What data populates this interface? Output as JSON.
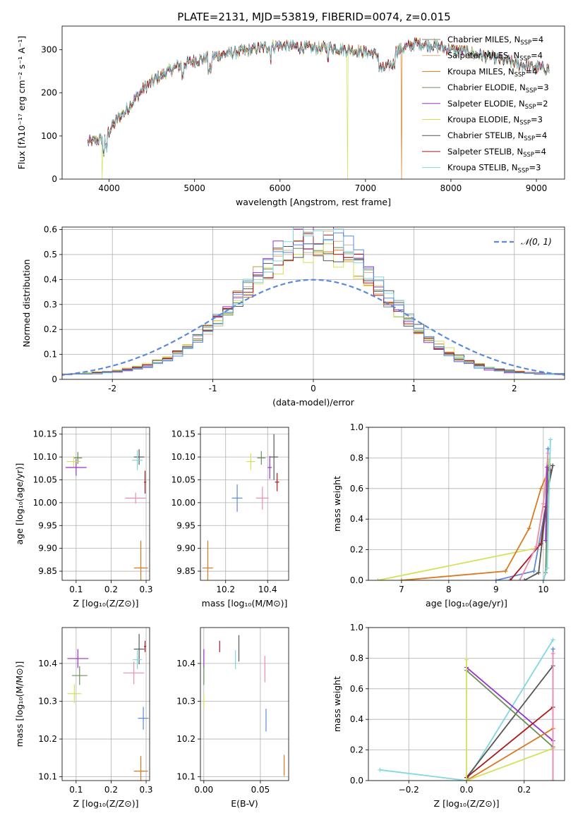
{
  "figure": {
    "title": "PLATE=2131, MJD=53819, FIBERID=0074, z=0.015"
  },
  "colors": {
    "Chabrier MILES": "#808080",
    "Salpeter MILES": "#d2b48c",
    "Kroupa MILES": "#d97a1e",
    "Chabrier ELODIE": "#6b8e5a",
    "Salpeter ELODIE": "#9932cc",
    "Kroupa ELODIE": "#d4e157",
    "Chabrier STELIB": "#555555",
    "Salpeter STELIB": "#aa1a1a",
    "Kroupa STELIB": "#80d8e0",
    "pink": "#f08cb0",
    "blue": "#5b8ad8"
  },
  "chart_data": [
    {
      "id": "spectrum",
      "type": "line",
      "xlabel": "wavelength [Angstrom, rest frame]",
      "ylabel": "Flux [fλ10⁻¹⁷ erg cm⁻² s⁻¹ A⁻¹]",
      "xlim": [
        3450,
        9330
      ],
      "ylim": [
        0,
        355
      ],
      "xticks": [
        4000,
        5000,
        6000,
        7000,
        8000,
        9000
      ],
      "yticks": [
        0,
        100,
        200,
        300
      ],
      "legend_position": "top-right",
      "legend": [
        {
          "name": "Chabrier MILES",
          "nssp": "4"
        },
        {
          "name": "Salpeter MILES",
          "nssp": "4"
        },
        {
          "name": "Kroupa MILES",
          "nssp": "4"
        },
        {
          "name": "Chabrier ELODIE",
          "nssp": "3"
        },
        {
          "name": "Salpeter ELODIE",
          "nssp": "2"
        },
        {
          "name": "Kroupa ELODIE",
          "nssp": "3"
        },
        {
          "name": "Chabrier STELIB",
          "nssp": "4"
        },
        {
          "name": "Salpeter STELIB",
          "nssp": "4"
        },
        {
          "name": "Kroupa STELIB",
          "nssp": "3"
        }
      ],
      "continuum_x": [
        3750,
        3900,
        4000,
        4100,
        4200,
        4400,
        4600,
        4800,
        5000,
        5200,
        5400,
        5600,
        5800,
        6000,
        6200,
        6400,
        6600,
        6800,
        7000,
        7100,
        7200,
        7400,
        7600,
        7800,
        8000,
        8200,
        8400,
        8600,
        8800,
        9000,
        9150
      ],
      "continuum_y": [
        85,
        92,
        110,
        140,
        160,
        210,
        240,
        262,
        275,
        283,
        292,
        298,
        305,
        310,
        307,
        303,
        305,
        300,
        295,
        290,
        280,
        300,
        315,
        310,
        300,
        295,
        285,
        277,
        265,
        260,
        255
      ],
      "dropouts": [
        {
          "series": "Kroupa ELODIE",
          "x": 3920
        },
        {
          "series": "Kroupa ELODIE",
          "x": 6790
        },
        {
          "series": "Kroupa MILES",
          "x": 7420
        }
      ]
    },
    {
      "id": "residuals",
      "type": "histogram",
      "xlabel": "(data-model)/error",
      "ylabel": "Normed distribution",
      "xlim": [
        -2.5,
        2.5
      ],
      "ylim": [
        0,
        0.61
      ],
      "xticks": [
        -2,
        -1,
        0,
        1,
        2
      ],
      "yticks": [
        0.0,
        0.1,
        0.2,
        0.3,
        0.4,
        0.5,
        0.6
      ],
      "bin_width": 0.1,
      "legend_position": "top-right",
      "reference_curve": {
        "label": "𝒩(0, 1)",
        "style": "dashed",
        "mu": 0,
        "sigma": 1
      },
      "series_peaks": [
        {
          "series": "Kroupa MILES",
          "peak": 0.52,
          "sigma": 0.72
        },
        {
          "series": "Salpeter MILES",
          "peak": 0.55,
          "sigma": 0.7
        },
        {
          "series": "Chabrier ELODIE",
          "peak": 0.53,
          "sigma": 0.71
        },
        {
          "series": "Salpeter ELODIE",
          "peak": 0.56,
          "sigma": 0.68
        },
        {
          "series": "Kroupa ELODIE",
          "peak": 0.5,
          "sigma": 0.74
        },
        {
          "series": "Chabrier STELIB",
          "peak": 0.52,
          "sigma": 0.72
        },
        {
          "series": "Salpeter STELIB",
          "peak": 0.53,
          "sigma": 0.71
        },
        {
          "series": "Kroupa STELIB",
          "peak": 0.57,
          "sigma": 0.69
        },
        {
          "series": "blue",
          "peak": 0.58,
          "sigma": 0.68
        }
      ]
    },
    {
      "id": "age_vs_Z",
      "type": "errorbar",
      "xlabel": "Z [log₁₀(Z/Z⊙)]",
      "ylabel": "age  [log₁₀(age/yr)]",
      "xlim": [
        0.06,
        0.31
      ],
      "ylim": [
        9.83,
        10.165
      ],
      "xticks": [
        0.1,
        0.2,
        0.3
      ],
      "xtick_labels": [
        "0.1",
        "0.2",
        "0.3"
      ],
      "yticks": [
        9.85,
        9.9,
        9.95,
        10.0,
        10.05,
        10.1,
        10.15
      ],
      "ytick_labels": [
        "9.85",
        "9.90",
        "9.95",
        "10.00",
        "10.05",
        "10.10",
        "10.15"
      ],
      "points": [
        {
          "series": "Chabrier ELODIE",
          "x": 0.105,
          "y": 10.098,
          "xerr": 0.012,
          "yerr": 0.013
        },
        {
          "series": "Salpeter ELODIE",
          "x": 0.1,
          "y": 10.077,
          "xerr": 0.03,
          "yerr": 0.018
        },
        {
          "series": "Kroupa ELODIE",
          "x": 0.093,
          "y": 10.09,
          "xerr": 0.02,
          "yerr": 0.012
        },
        {
          "series": "Chabrier STELIB",
          "x": 0.28,
          "y": 10.1,
          "xerr": 0.015,
          "yerr": 0.017
        },
        {
          "series": "Kroupa STELIB",
          "x": 0.275,
          "y": 10.093,
          "xerr": 0.015,
          "yerr": 0.022
        },
        {
          "series": "Salpeter STELIB",
          "x": 0.297,
          "y": 10.045,
          "xerr": 0.003,
          "yerr": 0.025
        },
        {
          "series": "pink",
          "x": 0.27,
          "y": 10.01,
          "xerr": 0.03,
          "yerr": 0.012
        },
        {
          "series": "Kroupa MILES",
          "x": 0.285,
          "y": 9.857,
          "xerr": 0.02,
          "yerr": 0.06
        }
      ]
    },
    {
      "id": "age_vs_mass",
      "type": "errorbar",
      "xlabel": "mass [log₁₀(M/M⊙)]",
      "ylabel": "",
      "xlim": [
        10.08,
        10.5
      ],
      "ylim": [
        9.83,
        10.165
      ],
      "xticks": [
        10.2,
        10.4
      ],
      "xtick_labels": [
        "10.2",
        "10.4"
      ],
      "yticks": [
        9.85,
        9.9,
        9.95,
        10.0,
        10.05,
        10.1,
        10.15
      ],
      "ytick_labels": [
        "9.85",
        "9.90",
        "9.95",
        "10.00",
        "10.05",
        "10.10",
        "10.15"
      ],
      "points": [
        {
          "series": "Kroupa MILES",
          "x": 10.115,
          "y": 9.857,
          "xerr": 0.025,
          "yerr": 0.06
        },
        {
          "series": "blue",
          "x": 10.255,
          "y": 10.01,
          "xerr": 0.025,
          "yerr": 0.03
        },
        {
          "series": "Kroupa ELODIE",
          "x": 10.32,
          "y": 10.09,
          "xerr": 0.02,
          "yerr": 0.018
        },
        {
          "series": "Chabrier ELODIE",
          "x": 10.37,
          "y": 10.098,
          "xerr": 0.02,
          "yerr": 0.015
        },
        {
          "series": "pink",
          "x": 10.375,
          "y": 10.01,
          "xerr": 0.03,
          "yerr": 0.025
        },
        {
          "series": "Salpeter ELODIE",
          "x": 10.41,
          "y": 10.077,
          "xerr": 0.01,
          "yerr": 0.025
        },
        {
          "series": "Chabrier STELIB",
          "x": 10.43,
          "y": 10.1,
          "xerr": 0.02,
          "yerr": 0.05
        },
        {
          "series": "Salpeter STELIB",
          "x": 10.445,
          "y": 10.045,
          "xerr": 0.01,
          "yerr": 0.02
        }
      ]
    },
    {
      "id": "massweight_vs_age",
      "type": "line",
      "xlabel": "age  [log₁₀(age/yr)]",
      "ylabel": "mass weight",
      "xlim": [
        6.3,
        10.45
      ],
      "ylim": [
        0,
        1
      ],
      "xticks": [
        7,
        8,
        9,
        10
      ],
      "xtick_labels": [
        "7",
        "8",
        "9",
        "10"
      ],
      "yticks": [
        0,
        0.2,
        0.4,
        0.6,
        0.8,
        1.0
      ],
      "ytick_labels": [
        "0.0",
        "0.2",
        "0.4",
        "0.6",
        "0.8",
        "1.0"
      ],
      "lines": [
        {
          "series": "Kroupa ELODIE",
          "x": [
            6.5,
            9.85,
            10.05,
            10.12
          ],
          "y": [
            0.0,
            0.21,
            0.6,
            0.79
          ]
        },
        {
          "series": "Kroupa MILES",
          "x": [
            7.0,
            9.2,
            9.7,
            9.95,
            10.15
          ],
          "y": [
            0.0,
            0.06,
            0.34,
            0.6,
            0.75
          ]
        },
        {
          "series": "blue",
          "x": [
            9.0,
            9.8,
            10.05,
            10.1
          ],
          "y": [
            0.0,
            0.06,
            0.48,
            0.86
          ]
        },
        {
          "series": "Salpeter STELIB",
          "x": [
            9.3,
            9.95,
            10.05,
            10.15
          ],
          "y": [
            0.0,
            0.24,
            0.48,
            0.72
          ]
        },
        {
          "series": "pink",
          "x": [
            9.5,
            9.85,
            10.0,
            10.1
          ],
          "y": [
            0.0,
            0.22,
            0.5,
            0.83
          ]
        },
        {
          "series": "Chabrier STELIB",
          "x": [
            9.6,
            9.9,
            10.1,
            10.2
          ],
          "y": [
            0.0,
            0.05,
            0.6,
            0.75
          ]
        },
        {
          "series": "Chabrier ELODIE",
          "x": [
            10.0,
            10.05,
            10.1
          ],
          "y": [
            0.0,
            0.05,
            0.73
          ]
        },
        {
          "series": "Salpeter ELODIE",
          "x": [
            10.05,
            10.08
          ],
          "y": [
            0.26,
            0.74
          ]
        },
        {
          "series": "Kroupa STELIB",
          "x": [
            10.0,
            10.08,
            10.15
          ],
          "y": [
            0.0,
            0.08,
            0.92
          ]
        }
      ]
    },
    {
      "id": "mass_vs_Z",
      "type": "errorbar",
      "xlabel": "Z [log₁₀(Z/Z⊙)]",
      "ylabel": "mass [log₁₀(M/M⊙)]",
      "xlim": [
        0.06,
        0.31
      ],
      "ylim": [
        10.09,
        10.495
      ],
      "xticks": [
        0.1,
        0.2,
        0.3
      ],
      "xtick_labels": [
        "0.1",
        "0.2",
        "0.3"
      ],
      "yticks": [
        10.1,
        10.2,
        10.3,
        10.4
      ],
      "ytick_labels": [
        "10.1",
        "10.2",
        "10.3",
        "10.4"
      ],
      "points": [
        {
          "series": "Salpeter ELODIE",
          "x": 0.105,
          "y": 10.413,
          "xerr": 0.03,
          "yerr": 0.025
        },
        {
          "series": "Chabrier ELODIE",
          "x": 0.11,
          "y": 10.368,
          "xerr": 0.022,
          "yerr": 0.025
        },
        {
          "series": "Kroupa ELODIE",
          "x": 0.095,
          "y": 10.32,
          "xerr": 0.02,
          "yerr": 0.025
        },
        {
          "series": "Chabrier STELIB",
          "x": 0.28,
          "y": 10.438,
          "xerr": 0.015,
          "yerr": 0.04
        },
        {
          "series": "Salpeter STELIB",
          "x": 0.297,
          "y": 10.445,
          "xerr": 0.003,
          "yerr": 0.015
        },
        {
          "series": "Kroupa STELIB",
          "x": 0.275,
          "y": 10.41,
          "xerr": 0.013,
          "yerr": 0.025
        },
        {
          "series": "pink",
          "x": 0.265,
          "y": 10.375,
          "xerr": 0.03,
          "yerr": 0.03
        },
        {
          "series": "blue",
          "x": 0.292,
          "y": 10.255,
          "xerr": 0.015,
          "yerr": 0.03
        },
        {
          "series": "Kroupa MILES",
          "x": 0.285,
          "y": 10.115,
          "xerr": 0.02,
          "yerr": 0.04
        }
      ]
    },
    {
      "id": "mass_vs_ebv",
      "type": "errorbar",
      "xlabel": "E(B-V)",
      "ylabel": "",
      "xlim": [
        -0.003,
        0.075
      ],
      "ylim": [
        10.09,
        10.495
      ],
      "xticks": [
        0.0,
        0.05
      ],
      "xtick_labels": [
        "0.00",
        "0.05"
      ],
      "yticks": [
        10.1,
        10.2,
        10.3,
        10.4
      ],
      "ytick_labels": [
        "10.1",
        "10.2",
        "10.3",
        "10.4"
      ],
      "points": [
        {
          "series": "Salpeter ELODIE",
          "x": 0.0,
          "y": 10.413,
          "xerr": 0.0,
          "yerr": 0.025
        },
        {
          "series": "Chabrier ELODIE",
          "x": 0.0,
          "y": 10.368,
          "xerr": 0.0,
          "yerr": 0.025
        },
        {
          "series": "Kroupa ELODIE",
          "x": 0.0,
          "y": 10.3,
          "xerr": 0.0,
          "yerr": 0.018
        },
        {
          "series": "Salpeter STELIB",
          "x": 0.014,
          "y": 10.445,
          "xerr": 0.0,
          "yerr": 0.015
        },
        {
          "series": "Kroupa STELIB",
          "x": 0.028,
          "y": 10.41,
          "xerr": 0.0,
          "yerr": 0.025
        },
        {
          "series": "Chabrier STELIB",
          "x": 0.031,
          "y": 10.44,
          "xerr": 0.0,
          "yerr": 0.035
        },
        {
          "series": "pink",
          "x": 0.054,
          "y": 10.385,
          "xerr": 0.0,
          "yerr": 0.035
        },
        {
          "series": "blue",
          "x": 0.055,
          "y": 10.25,
          "xerr": 0.0,
          "yerr": 0.03
        },
        {
          "series": "Kroupa MILES",
          "x": 0.071,
          "y": 10.13,
          "xerr": 0.0,
          "yerr": 0.028
        }
      ]
    },
    {
      "id": "massweight_vs_Z",
      "type": "line",
      "xlabel": "Z [log₁₀(Z/Z⊙)]",
      "ylabel": "mass weight",
      "xlim": [
        -0.34,
        0.34
      ],
      "ylim": [
        0,
        1
      ],
      "xticks": [
        -0.2,
        0.0,
        0.2
      ],
      "xtick_labels": [
        "−0.2",
        "0.0",
        "0.2"
      ],
      "yticks": [
        0,
        0.2,
        0.4,
        0.6,
        0.8,
        1.0
      ],
      "ytick_labels": [
        "0.0",
        "0.2",
        "0.4",
        "0.6",
        "0.8",
        "1.0"
      ],
      "lines": [
        {
          "series": "Kroupa STELIB",
          "x": [
            -0.3,
            0.0,
            0.3
          ],
          "y": [
            0.07,
            0.0,
            0.92
          ]
        },
        {
          "series": "Chabrier STELIB",
          "x": [
            0.0,
            0.3
          ],
          "y": [
            0.02,
            0.75
          ]
        },
        {
          "series": "Salpeter ELODIE",
          "x": [
            0.0,
            0.3
          ],
          "y": [
            0.74,
            0.26
          ]
        },
        {
          "series": "Chabrier ELODIE",
          "x": [
            0.0,
            0.3
          ],
          "y": [
            0.72,
            0.22
          ]
        },
        {
          "series": "Salpeter STELIB",
          "x": [
            0.0,
            0.3
          ],
          "y": [
            0.02,
            0.48
          ]
        },
        {
          "series": "Kroupa MILES",
          "x": [
            0.0,
            0.3
          ],
          "y": [
            0.0,
            0.34
          ]
        },
        {
          "series": "Kroupa ELODIE",
          "x": [
            0.0,
            0.0,
            0.3
          ],
          "y": [
            0.79,
            0.0,
            0.21
          ]
        },
        {
          "series": "blue",
          "x": [
            0.3,
            0.3
          ],
          "y": [
            0.0,
            0.86
          ]
        },
        {
          "series": "pink",
          "x": [
            0.3,
            0.3
          ],
          "y": [
            0.0,
            0.83
          ]
        }
      ]
    }
  ]
}
